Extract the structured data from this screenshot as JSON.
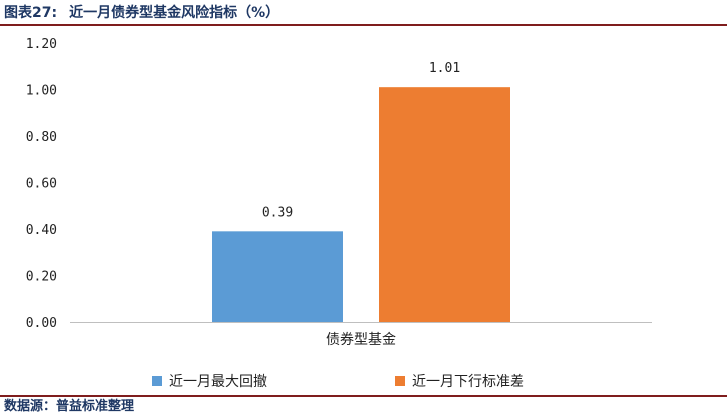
{
  "header": {
    "figure_label": "图表27:",
    "title": "近一月债券型基金风险指标（%）"
  },
  "source": {
    "text": "数据源：普益标准整理"
  },
  "chart_data": {
    "type": "bar",
    "categories": [
      "债券型基金"
    ],
    "series": [
      {
        "name": "近一月最大回撤",
        "values": [
          0.39
        ],
        "color": "#5b9bd5"
      },
      {
        "name": "近一月下行标准差",
        "values": [
          1.01
        ],
        "color": "#ed7d31"
      }
    ],
    "data_labels": [
      "0.39",
      "1.01"
    ],
    "yticks": [
      "0.00",
      "0.20",
      "0.40",
      "0.60",
      "0.80",
      "1.00",
      "1.20"
    ],
    "ylim": [
      0,
      1.2
    ],
    "grid": false,
    "legend": "bottom",
    "xlabel": "",
    "ylabel": "",
    "title": ""
  }
}
